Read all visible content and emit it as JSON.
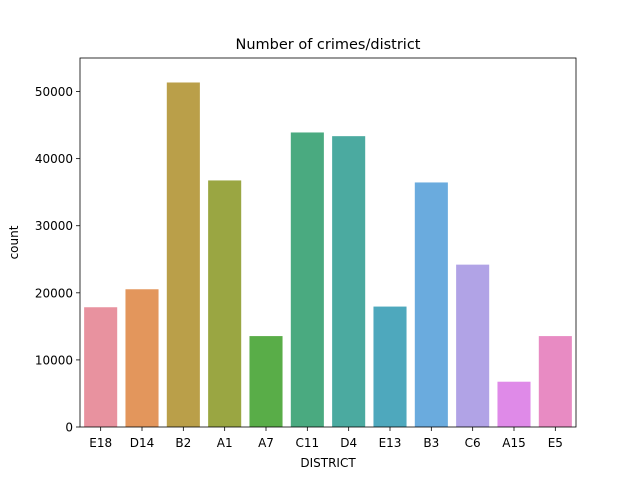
{
  "chart_data": {
    "type": "bar",
    "title": "Number of crimes/district",
    "xlabel": "DISTRICT",
    "ylabel": "count",
    "categories": [
      "E18",
      "D14",
      "B2",
      "A1",
      "A7",
      "C11",
      "D4",
      "E13",
      "B3",
      "C6",
      "A15",
      "E5"
    ],
    "values": [
      17850,
      20530,
      51350,
      36750,
      13550,
      43900,
      43350,
      17950,
      36450,
      24200,
      6750,
      13550
    ],
    "colors": [
      "#e8929f",
      "#e3965c",
      "#ba9f49",
      "#9aa642",
      "#59ad48",
      "#4aaa80",
      "#4baaa0",
      "#4ea8bd",
      "#6aabde",
      "#b1a3e6",
      "#df8ae8",
      "#e88bc3"
    ],
    "ylim": [
      0,
      55000
    ],
    "yticks": [
      0,
      10000,
      20000,
      30000,
      40000,
      50000
    ],
    "grid": false,
    "legend": "none"
  }
}
